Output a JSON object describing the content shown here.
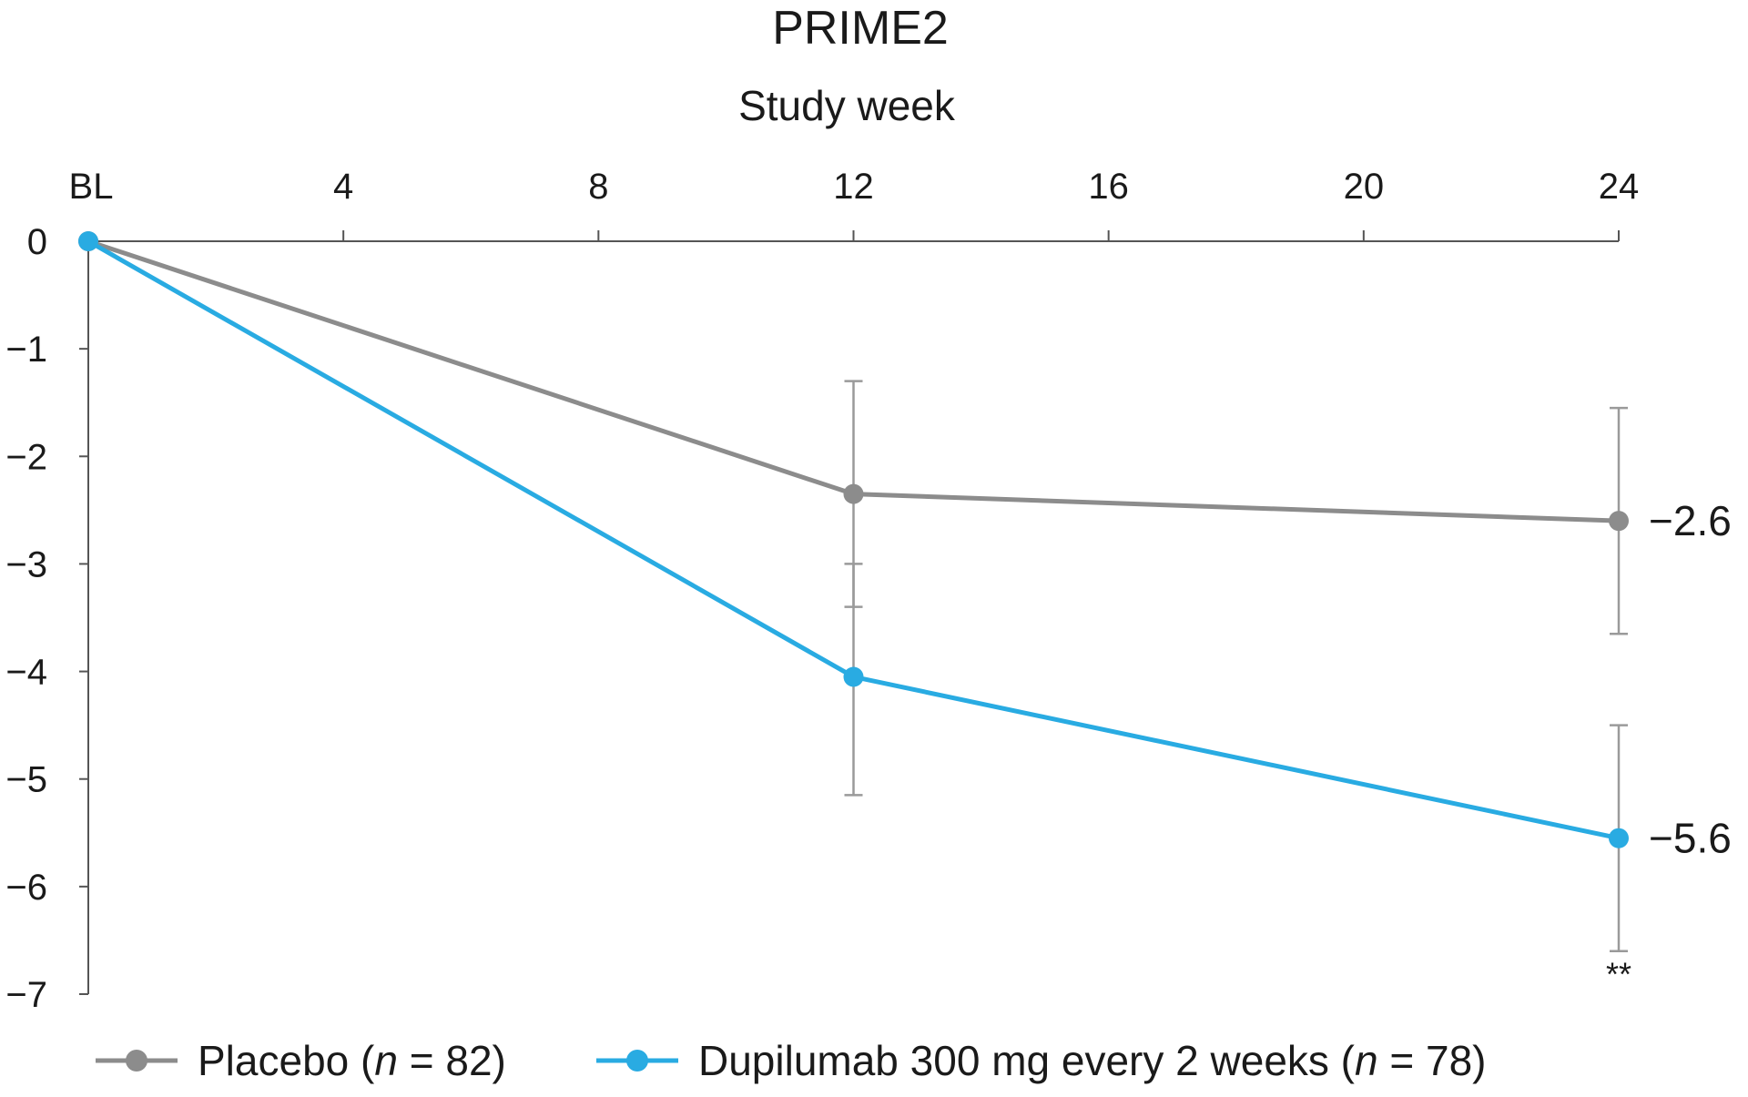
{
  "chart_data": {
    "type": "line",
    "title": "PRIME2",
    "xlabel": "Study week",
    "ylabel": "",
    "x": [
      0,
      12,
      24
    ],
    "x_ticks": [
      {
        "value": 0,
        "label": "BL"
      },
      {
        "value": 4,
        "label": "4"
      },
      {
        "value": 8,
        "label": "8"
      },
      {
        "value": 12,
        "label": "12"
      },
      {
        "value": 16,
        "label": "16"
      },
      {
        "value": 20,
        "label": "20"
      },
      {
        "value": 24,
        "label": "24"
      }
    ],
    "xlim": [
      0,
      24
    ],
    "x_axis_position": "top",
    "y_ticks": [
      {
        "value": 0,
        "label": "0"
      },
      {
        "value": -1,
        "label": "−1"
      },
      {
        "value": -2,
        "label": "−2"
      },
      {
        "value": -3,
        "label": "−3"
      },
      {
        "value": -4,
        "label": "−4"
      },
      {
        "value": -5,
        "label": "−5"
      },
      {
        "value": -6,
        "label": "−6"
      },
      {
        "value": -7,
        "label": "−7"
      }
    ],
    "ylim": [
      -7,
      0
    ],
    "grid": false,
    "legend_position": "bottom",
    "series": [
      {
        "key": "placebo",
        "legend": {
          "prefix": "Placebo (",
          "n_symbol": "n",
          "suffix": " = 82)"
        },
        "color": "#8c8c8c",
        "values": [
          0,
          -2.35,
          -2.6
        ],
        "error_low": [
          0,
          -3.4,
          -3.65
        ],
        "error_high": [
          0,
          -1.3,
          -1.55
        ],
        "end_label": "−2.6"
      },
      {
        "key": "dupilumab",
        "legend": {
          "prefix": "Dupilumab 300 mg every 2 weeks (",
          "n_symbol": "n",
          "suffix": " = 78)"
        },
        "color": "#29abe2",
        "values": [
          0,
          -4.05,
          -5.55
        ],
        "error_low": [
          0,
          -5.15,
          -6.6
        ],
        "error_high": [
          0,
          -3.0,
          -4.5
        ],
        "end_label": "−5.6"
      }
    ],
    "annotations": [
      {
        "x": 24,
        "y": -6.6,
        "text": "**",
        "series": "dupilumab"
      }
    ]
  }
}
